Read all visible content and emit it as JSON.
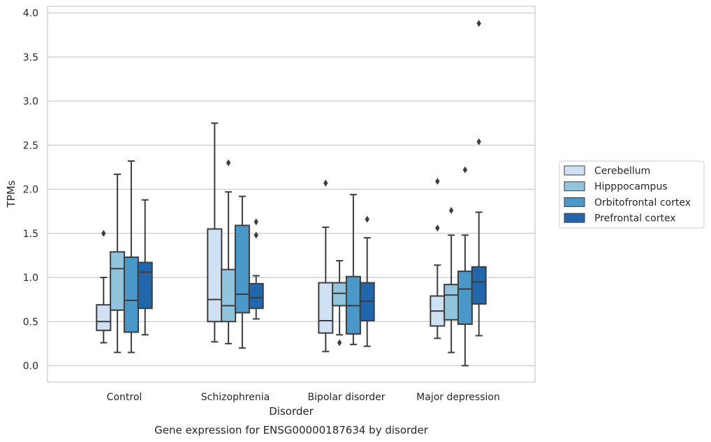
{
  "chart_data": {
    "type": "box",
    "title": "",
    "caption": "Gene expression for ENSG00000187634 by disorder",
    "xlabel": "Disorder",
    "ylabel": "TPMs",
    "ylim": [
      -0.18,
      4.08
    ],
    "yticks": [
      "0.0",
      "0.5",
      "1.0",
      "1.5",
      "2.0",
      "2.5",
      "3.0",
      "3.5",
      "4.0"
    ],
    "grid": "horizontal",
    "legend_position": "right",
    "categories": [
      "Control",
      "Schizophrenia",
      "Bipolar disorder",
      "Major depression"
    ],
    "series": [
      {
        "name": "Cerebellum",
        "color": "#cfe1f2",
        "boxes": [
          {
            "whislo": 0.26,
            "q1": 0.4,
            "med": 0.5,
            "q3": 0.69,
            "whishi": 1.0,
            "fliers": [
              1.5
            ]
          },
          {
            "whislo": 0.27,
            "q1": 0.5,
            "med": 0.75,
            "q3": 1.55,
            "whishi": 2.75,
            "fliers": []
          },
          {
            "whislo": 0.16,
            "q1": 0.37,
            "med": 0.51,
            "q3": 0.94,
            "whishi": 1.57,
            "fliers": [
              2.07
            ]
          },
          {
            "whislo": 0.31,
            "q1": 0.45,
            "med": 0.62,
            "q3": 0.79,
            "whishi": 1.14,
            "fliers": [
              1.56,
              2.09
            ]
          }
        ]
      },
      {
        "name": "Hipppocampus",
        "color": "#93c4de",
        "boxes": [
          {
            "whislo": 0.15,
            "q1": 0.63,
            "med": 1.1,
            "q3": 1.29,
            "whishi": 2.17,
            "fliers": []
          },
          {
            "whislo": 0.25,
            "q1": 0.5,
            "med": 0.68,
            "q3": 1.09,
            "whishi": 1.97,
            "fliers": [
              2.3
            ]
          },
          {
            "whislo": 0.35,
            "q1": 0.68,
            "med": 0.82,
            "q3": 0.94,
            "whishi": 1.19,
            "fliers": [
              0.26
            ]
          },
          {
            "whislo": 0.15,
            "q1": 0.52,
            "med": 0.8,
            "q3": 0.92,
            "whishi": 1.48,
            "fliers": [
              1.76
            ]
          }
        ]
      },
      {
        "name": "Orbitofrontal cortex",
        "color": "#4a98c9",
        "boxes": [
          {
            "whislo": 0.15,
            "q1": 0.38,
            "med": 0.74,
            "q3": 1.23,
            "whishi": 2.32,
            "fliers": []
          },
          {
            "whislo": 0.2,
            "q1": 0.6,
            "med": 0.81,
            "q3": 1.59,
            "whishi": 1.92,
            "fliers": []
          },
          {
            "whislo": 0.24,
            "q1": 0.36,
            "med": 0.68,
            "q3": 1.01,
            "whishi": 1.94,
            "fliers": []
          },
          {
            "whislo": 0.0,
            "q1": 0.47,
            "med": 0.87,
            "q3": 1.07,
            "whishi": 1.48,
            "fliers": [
              2.22
            ]
          }
        ]
      },
      {
        "name": "Prefrontal cortex",
        "color": "#2266ac",
        "boxes": [
          {
            "whislo": 0.35,
            "q1": 0.65,
            "med": 1.06,
            "q3": 1.17,
            "whishi": 1.88,
            "fliers": []
          },
          {
            "whislo": 0.53,
            "q1": 0.65,
            "med": 0.77,
            "q3": 0.93,
            "whishi": 1.02,
            "fliers": [
              1.48,
              1.63
            ]
          },
          {
            "whislo": 0.22,
            "q1": 0.51,
            "med": 0.73,
            "q3": 0.94,
            "whishi": 1.45,
            "fliers": [
              1.66
            ]
          },
          {
            "whislo": 0.34,
            "q1": 0.7,
            "med": 0.95,
            "q3": 1.12,
            "whishi": 1.74,
            "fliers": [
              2.54,
              3.88
            ]
          }
        ]
      }
    ]
  }
}
